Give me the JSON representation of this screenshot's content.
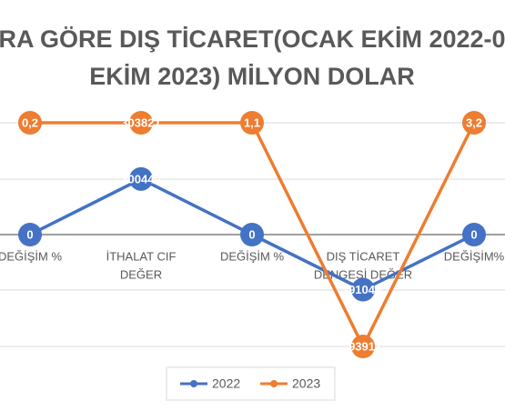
{
  "chart_data": {
    "type": "line",
    "stacked": "percent",
    "title": [
      "RA GÖRE DIŞ TİCARET(OCAK EKİM 2022-0",
      "EKİM 2023) MİLYON DOLAR"
    ],
    "categories": [
      [
        "DEĞİŞİM %"
      ],
      [
        "İTHALAT CIF",
        "DEĞER"
      ],
      [
        "DEĞİŞİM %"
      ],
      [
        "DIŞ TİCARET",
        "DENGESİ DEĞER"
      ],
      [
        "DEĞİŞİM%"
      ]
    ],
    "series": [
      {
        "name": "2022",
        "color": "#4472c4",
        "values": [
          0,
          300440,
          0,
          -91048,
          0
        ]
      },
      {
        "name": "2023",
        "color": "#ed7d31",
        "values": [
          0.2,
          303821,
          1.1,
          -93917,
          3.2
        ],
        "value_labels": [
          "0,2",
          "303821",
          "1,1",
          "-93917",
          "3,2"
        ]
      }
    ],
    "ylim": [
      -100,
      100
    ]
  }
}
